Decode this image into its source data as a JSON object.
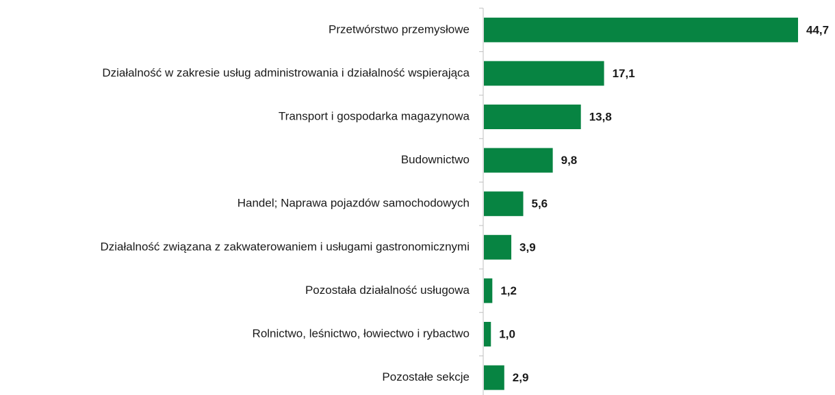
{
  "chart_data": {
    "type": "bar",
    "orientation": "horizontal",
    "categories": [
      "Przetwórstwo przemysłowe",
      "Działalność w zakresie usług administrowania i działalność wspierająca",
      "Transport i gospodarka magazynowa",
      "Budownictwo",
      "Handel; Naprawa pojazdów samochodowych",
      "Działalność związana z zakwaterowaniem i usługami gastronomicznymi",
      "Pozostała działalność usługowa",
      "Rolnictwo, leśnictwo, łowiectwo i rybactwo",
      "Pozostałe sekcje"
    ],
    "values": [
      44.7,
      17.1,
      13.8,
      9.8,
      5.6,
      3.9,
      1.2,
      1.0,
      2.9
    ],
    "value_labels": [
      "44,7",
      "17,1",
      "13,8",
      "9,8",
      "5,6",
      "3,9",
      "1,2",
      "1,0",
      "2,9"
    ],
    "color": "#078442"
  }
}
